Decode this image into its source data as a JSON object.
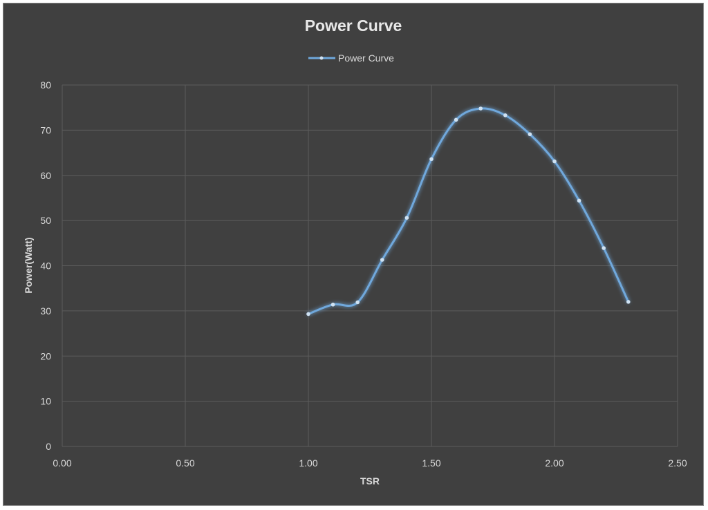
{
  "chart_data": {
    "type": "line",
    "title": "Power Curve",
    "xlabel": "TSR",
    "ylabel": "Power(Watt)",
    "xlim": [
      0,
      2.5
    ],
    "ylim": [
      0,
      80
    ],
    "x_ticks": [
      "0.00",
      "0.50",
      "1.00",
      "1.50",
      "2.00",
      "2.50"
    ],
    "y_ticks": [
      "0",
      "10",
      "20",
      "30",
      "40",
      "50",
      "60",
      "70",
      "80"
    ],
    "grid": true,
    "legend": "top-center",
    "series": [
      {
        "name": "Power Curve",
        "color": "#6fa8dc",
        "smooth": true,
        "x": [
          1.0,
          1.1,
          1.2,
          1.3,
          1.4,
          1.5,
          1.6,
          1.7,
          1.8,
          1.9,
          2.0,
          2.1,
          2.2,
          2.3
        ],
        "y": [
          29.3,
          31.4,
          31.9,
          41.3,
          50.6,
          63.6,
          72.3,
          74.8,
          73.3,
          69.1,
          63.1,
          54.4,
          43.9,
          32.0
        ]
      }
    ]
  }
}
